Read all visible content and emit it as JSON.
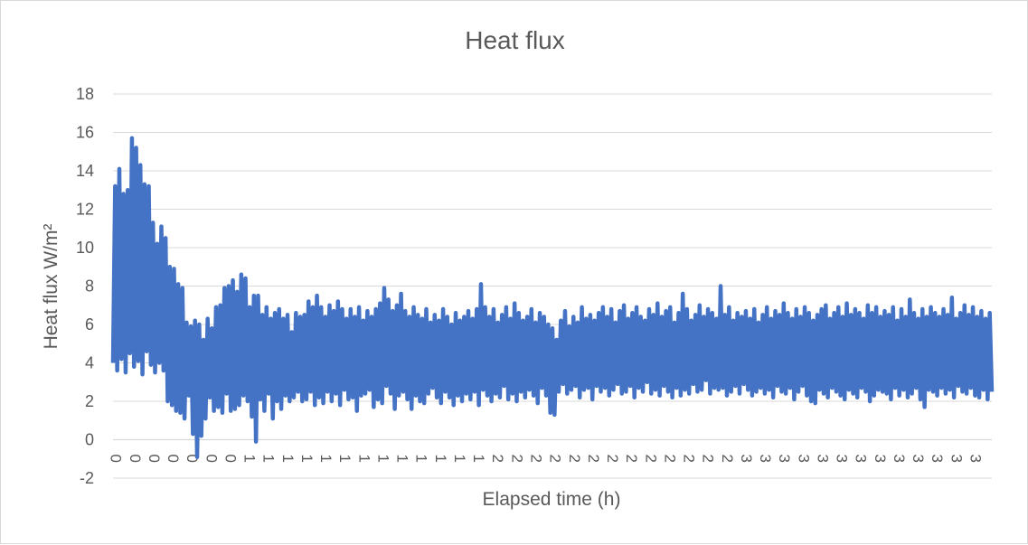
{
  "chart_data": {
    "type": "line",
    "title": "Heat flux",
    "xlabel": "Elapsed time (h)",
    "ylabel": "Heat flux W/m²",
    "ylim": [
      -2,
      18
    ],
    "yticks": [
      -2,
      0,
      2,
      4,
      6,
      8,
      10,
      12,
      14,
      16,
      18
    ],
    "xtick_labels": [
      "0",
      "0",
      "0",
      "0",
      "0",
      "0",
      "0",
      "1",
      "1",
      "1",
      "1",
      "1",
      "1",
      "1",
      "1",
      "1",
      "1",
      "1",
      "1",
      "1",
      "2",
      "2",
      "2",
      "2",
      "2",
      "2",
      "2",
      "2",
      "2",
      "2",
      "2",
      "2",
      "2",
      "3",
      "3",
      "3",
      "3",
      "3",
      "3",
      "3",
      "3",
      "3",
      "3",
      "3",
      "3",
      "3"
    ],
    "grid": true,
    "legend": "none",
    "series_color": "#4472c4",
    "series": [
      {
        "values": [
          4.0,
          13.2,
          3.6,
          14.1,
          4.2,
          12.8,
          3.5,
          13.0,
          4.5,
          15.7,
          3.8,
          15.2,
          4.1,
          14.3,
          3.4,
          13.3,
          4.6,
          13.2,
          3.9,
          11.3,
          3.5,
          10.2,
          4.0,
          11.1,
          3.6,
          10.5,
          2.0,
          9.0,
          1.8,
          8.9,
          1.5,
          8.1,
          1.4,
          7.9,
          1.1,
          6.1,
          2.3,
          5.9,
          0.3,
          6.2,
          -0.9,
          6.0,
          0.2,
          5.2,
          1.1,
          6.3,
          2.2,
          5.8,
          1.5,
          6.9,
          1.7,
          7.0,
          1.4,
          7.9,
          2.4,
          8.0,
          1.5,
          8.3,
          1.6,
          7.7,
          1.8,
          8.6,
          2.3,
          8.4,
          2.0,
          6.9,
          1.2,
          7.5,
          -0.1,
          7.5,
          2.1,
          6.5,
          1.5,
          6.9,
          2.4,
          6.3,
          1.1,
          6.6,
          2.0,
          6.8,
          1.6,
          6.3,
          2.3,
          6.5,
          2.0,
          5.6,
          2.2,
          6.6,
          2.5,
          6.4,
          2.0,
          6.5,
          2.1,
          7.2,
          2.5,
          6.9,
          1.8,
          7.5,
          2.2,
          6.9,
          1.9,
          6.4,
          2.5,
          7.0,
          2.0,
          6.7,
          2.4,
          7.2,
          1.8,
          6.8,
          2.6,
          6.3,
          2.1,
          6.8,
          2.2,
          6.4,
          1.5,
          6.9,
          2.3,
          6.2,
          2.4,
          6.7,
          2.6,
          6.4,
          1.7,
          6.8,
          2.1,
          7.1,
          1.9,
          7.9,
          2.8,
          7.3,
          2.4,
          6.7,
          1.6,
          7.0,
          2.3,
          7.6,
          2.5,
          6.7,
          2.1,
          6.4,
          1.6,
          6.9,
          2.3,
          6.5,
          2.0,
          6.3,
          1.9,
          6.8,
          2.4,
          6.1,
          2.7,
          6.5,
          2.2,
          6.2,
          1.9,
          6.8,
          2.5,
          6.4,
          2.2,
          6.0,
          1.8,
          6.6,
          2.3,
          6.2,
          2.0,
          6.4,
          2.4,
          6.7,
          2.1,
          6.3,
          2.5,
          6.8,
          1.8,
          8.1,
          2.6,
          6.9,
          2.3,
          6.4,
          2.0,
          6.8,
          2.4,
          6.1,
          2.2,
          6.5,
          2.8,
          6.9,
          2.1,
          6.3,
          2.4,
          7.1,
          2.0,
          6.6,
          2.5,
          6.2,
          2.2,
          6.4,
          2.6,
          6.8,
          2.3,
          6.1,
          1.9,
          6.6,
          2.7,
          6.4,
          2.3,
          6.0,
          1.4,
          5.8,
          1.3,
          5.2,
          2.5,
          6.2,
          2.9,
          6.7,
          2.4,
          5.9,
          2.6,
          6.4,
          2.8,
          6.1,
          2.2,
          6.9,
          2.6,
          6.3,
          2.7,
          6.5,
          2.1,
          6.2,
          2.8,
          6.6,
          2.5,
          6.9,
          2.7,
          6.4,
          2.3,
          6.8,
          2.6,
          6.1,
          2.9,
          6.7,
          2.4,
          7.0,
          2.5,
          6.3,
          2.8,
          6.6,
          2.2,
          6.9,
          2.7,
          6.4,
          2.5,
          6.2,
          3.0,
          6.8,
          2.4,
          6.5,
          2.6,
          7.1,
          2.3,
          6.4,
          2.8,
          6.7,
          2.5,
          6.9,
          2.2,
          6.1,
          2.7,
          6.6,
          2.3,
          7.6,
          2.6,
          6.8,
          2.4,
          6.2,
          2.9,
          6.5,
          2.5,
          7.0,
          2.6,
          6.4,
          3.1,
          6.8,
          2.4,
          6.6,
          2.7,
          6.3,
          2.6,
          8.0,
          2.7,
          6.5,
          2.3,
          6.9,
          2.5,
          6.2,
          2.8,
          6.6,
          2.4,
          6.4,
          2.9,
          6.7,
          2.6,
          6.3,
          2.3,
          6.8,
          2.5,
          6.1,
          2.7,
          6.5,
          2.4,
          6.9,
          2.6,
          6.3,
          2.2,
          6.7,
          2.8,
          6.5,
          2.5,
          7.1,
          2.4,
          6.6,
          2.7,
          6.3,
          2.1,
          6.8,
          2.5,
          6.4,
          2.8,
          6.9,
          2.3,
          6.6,
          2.0,
          6.2,
          1.9,
          6.5,
          2.6,
          6.8,
          2.4,
          7.0,
          2.2,
          6.3,
          2.7,
          6.6,
          2.5,
          6.9,
          2.3,
          6.4,
          2.1,
          7.1,
          2.6,
          6.5,
          2.4,
          6.8,
          2.2,
          6.6,
          2.7,
          6.3,
          2.5,
          7.0,
          2.0,
          6.6,
          2.3,
          6.9,
          2.6,
          6.4,
          2.5,
          6.7,
          2.4,
          6.5,
          2.1,
          6.9,
          2.7,
          6.2,
          2.3,
          6.8,
          2.6,
          6.4,
          2.2,
          7.3,
          2.4,
          6.6,
          2.7,
          6.3,
          2.1,
          6.8,
          1.7,
          6.4,
          2.6,
          6.9,
          2.5,
          6.6,
          2.3,
          6.4,
          2.7,
          6.8,
          2.4,
          6.5,
          2.6,
          7.4,
          2.2,
          6.3,
          2.8,
          6.6,
          2.5,
          7.0,
          2.4,
          6.5,
          2.7,
          6.9,
          2.3,
          6.4,
          2.2,
          6.7,
          2.6,
          6.3,
          2.1,
          6.6,
          2.5
        ]
      }
    ]
  }
}
